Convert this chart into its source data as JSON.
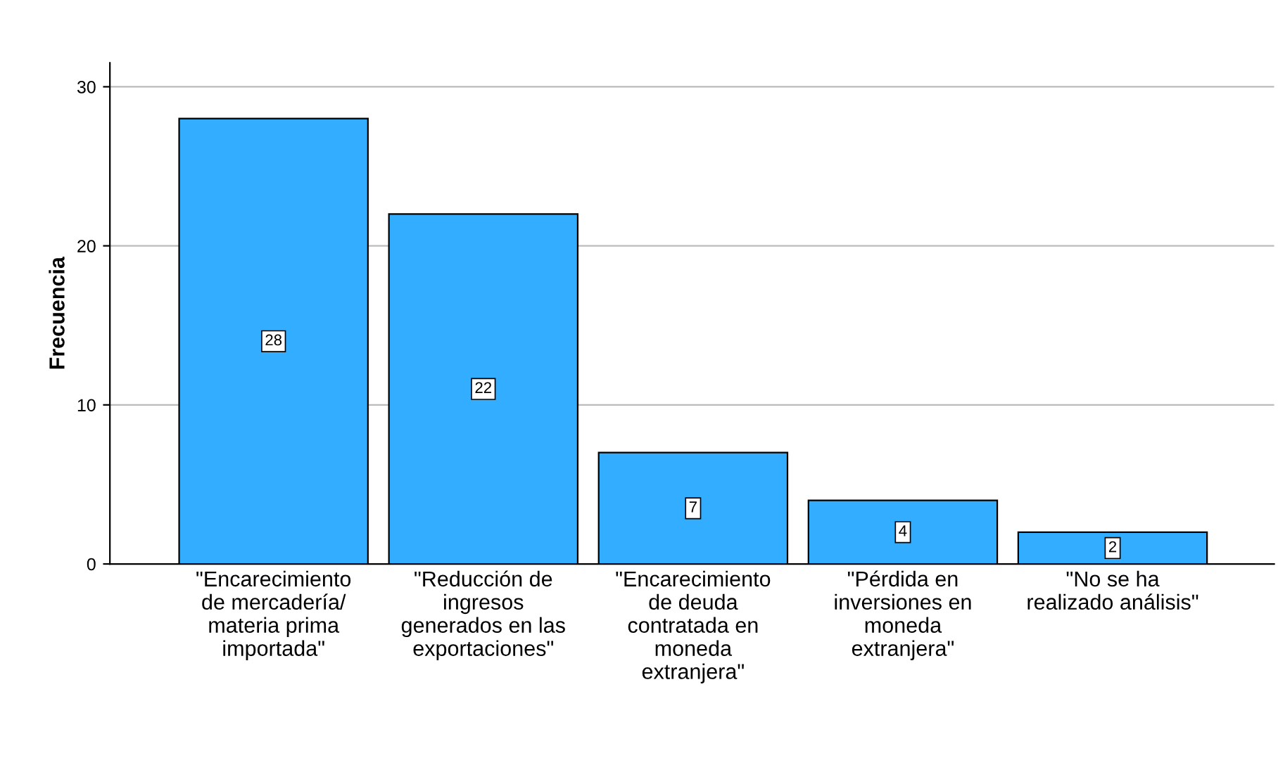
{
  "chart_data": {
    "type": "bar",
    "ylabel": "Frecuencia",
    "categories": [
      "\"Encarecimiento\nde mercadería/\nmateria prima\nimportada\"",
      "\"Reducción de\ningresos\ngenerados en las\nexportaciones\"",
      "\"Encarecimiento\nde deuda\ncontratada en\nmoneda\nextranjera\"",
      "\"Pérdida en\ninversiones en\nmoneda\nextranjera\"",
      "\"No se ha\nrealizado análisis\""
    ],
    "values": [
      28,
      22,
      7,
      4,
      2
    ],
    "color": "#33adff",
    "ylim": [
      0,
      31.5
    ],
    "yticks": [
      0,
      10,
      20,
      30
    ],
    "grid": "y",
    "data_labels": true
  }
}
